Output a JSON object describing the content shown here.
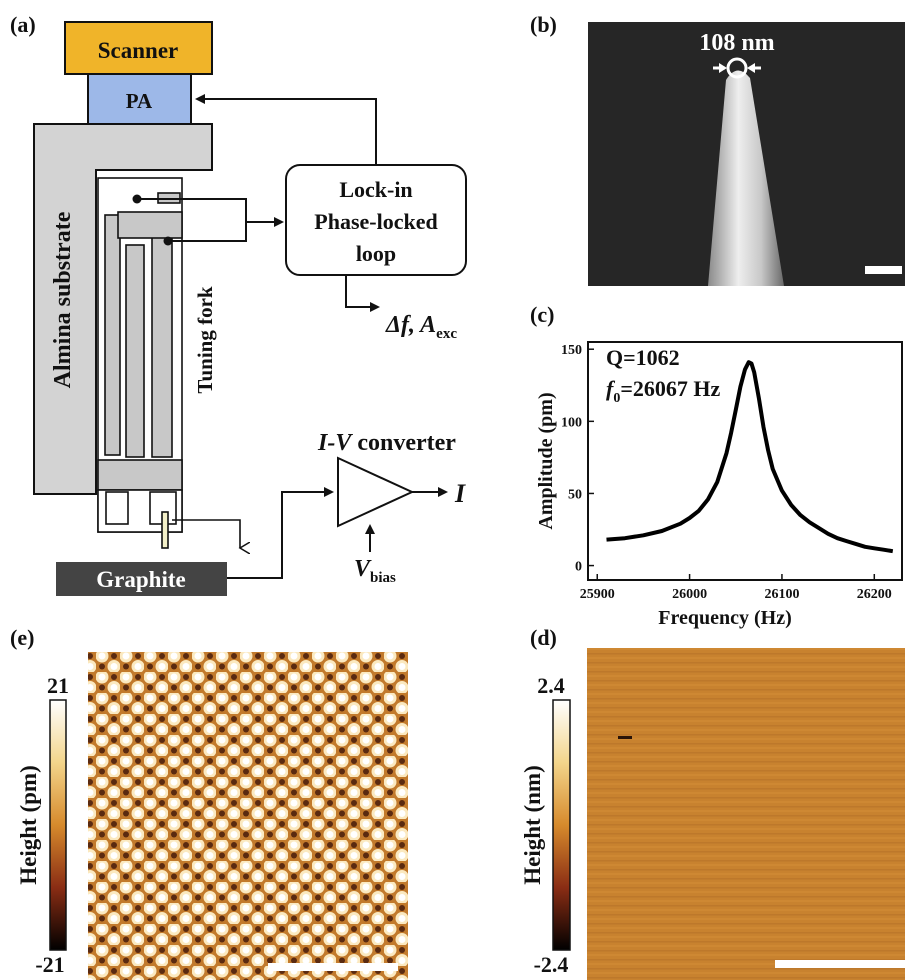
{
  "panels": {
    "a": {
      "label": "(a)",
      "scanner": "Scanner",
      "pa": "PA",
      "substrate": "Almina substrate",
      "tuning_fork": "Tuning fork",
      "lockin": [
        "Lock-in",
        "Phase-locked",
        "loop"
      ],
      "output_delta_f": "Δf, ",
      "output_a": "A",
      "output_a_sub": "exc",
      "iv_label_italic": "I-V",
      "iv_label_rest": " converter",
      "current": "I",
      "vbias": "V",
      "vbias_sub": "bias",
      "graphite": "Graphite",
      "colors": {
        "scanner": "#f0b429",
        "pa": "#9db8e8",
        "substrate": "#d3d3d3",
        "graphite": "#444444"
      }
    },
    "b": {
      "label": "(b)",
      "tip_size": "108 nm"
    },
    "c": {
      "label": "(c)",
      "q_text": "Q=1062",
      "f0_sym": "f",
      "f0_sub": "0",
      "f0_value": "=26067 Hz"
    },
    "e": {
      "label": "(e)",
      "colorbar_max": "21",
      "colorbar_min": "-21",
      "colorbar_label": "Height (pm)"
    },
    "d": {
      "label": "(d)",
      "colorbar_max": "2.4",
      "colorbar_min": "-2.4",
      "colorbar_label": "Height (nm)"
    }
  },
  "chart_data": {
    "type": "line",
    "xlabel": "Frequency (Hz)",
    "ylabel": "Amplitude (pm)",
    "xlim": [
      25890,
      26230
    ],
    "ylim": [
      -10,
      155
    ],
    "xticks": [
      25900,
      26000,
      26100,
      26200
    ],
    "yticks": [
      0,
      50,
      100,
      150
    ],
    "grid": false,
    "series": [
      {
        "x": [
          25910,
          25930,
          25950,
          25970,
          25990,
          26000,
          26010,
          26020,
          26030,
          26040,
          26045,
          26050,
          26055,
          26060,
          26064,
          26067,
          26070,
          26075,
          26080,
          26085,
          26090,
          26100,
          26110,
          26120,
          26130,
          26140,
          26150,
          26160,
          26170,
          26180,
          26190,
          26200,
          26210,
          26220
        ],
        "y": [
          18,
          19,
          21,
          24,
          29,
          33,
          38,
          46,
          58,
          78,
          92,
          108,
          124,
          136,
          141,
          140,
          134,
          116,
          96,
          80,
          67,
          52,
          42,
          35,
          30,
          26,
          22,
          19,
          17,
          15,
          13,
          12,
          11,
          10
        ]
      }
    ]
  }
}
